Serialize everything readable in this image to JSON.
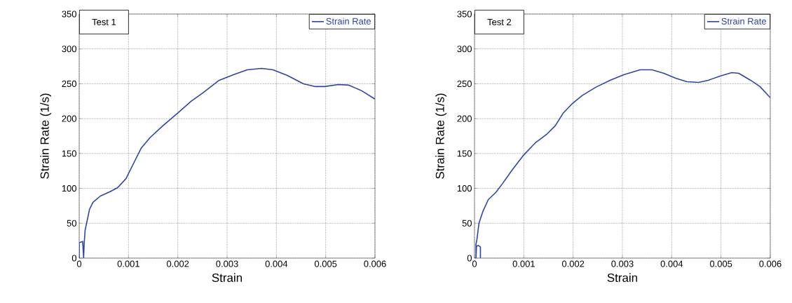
{
  "chart_data": [
    {
      "type": "line",
      "title": "Test 1",
      "xlabel": "Strain",
      "ylabel": "Strain Rate (1/s)",
      "xlim": [
        0,
        0.006
      ],
      "ylim": [
        0,
        350
      ],
      "xticks": [
        0,
        0.001,
        0.002,
        0.003,
        0.004,
        0.005,
        0.006
      ],
      "yticks": [
        0,
        50,
        100,
        150,
        200,
        250,
        300,
        350
      ],
      "grid": true,
      "legend": "top right",
      "line_style": "solid",
      "marker": "none",
      "series": [
        {
          "name": "Strain Rate",
          "color": "#2e45a6",
          "x": [
            0,
            0,
            7e-05,
            9e-05,
            0.0001,
            0.00012,
            0.00021,
            0.00028,
            0.00043,
            0.00062,
            0.00078,
            0.00095,
            0.00109,
            0.00126,
            0.00144,
            0.0017,
            0.002,
            0.00227,
            0.00251,
            0.00284,
            0.00313,
            0.00341,
            0.0037,
            0.00393,
            0.00422,
            0.00455,
            0.00479,
            0.00498,
            0.00526,
            0.00547,
            0.00573,
            0.006
          ],
          "values": [
            0,
            22,
            24,
            0,
            20,
            40,
            70,
            80,
            89,
            95,
            101,
            114,
            134,
            158,
            173,
            190,
            208,
            225,
            237,
            255,
            263,
            270,
            272,
            270,
            262,
            250,
            246,
            246,
            249,
            248,
            240,
            228
          ]
        }
      ]
    },
    {
      "type": "line",
      "title": "Test 2",
      "xlabel": "Strain",
      "ylabel": "Strain Rate (1/s)",
      "xlim": [
        0,
        0.006
      ],
      "ylim": [
        0,
        350
      ],
      "xticks": [
        0,
        0.001,
        0.002,
        0.003,
        0.004,
        0.005,
        0.006
      ],
      "yticks": [
        0,
        50,
        100,
        150,
        200,
        250,
        300,
        350
      ],
      "grid": true,
      "legend": "top right",
      "line_style": "solid",
      "marker": "none",
      "series": [
        {
          "name": "Strain Rate",
          "color": "#2e45a6",
          "x": [
            0.00012,
            0.00012,
            8e-05,
            4e-05,
            3e-05,
            3e-05,
            5e-05,
            9e-05,
            0.00017,
            0.00028,
            0.00043,
            0.00057,
            0.00076,
            0.001,
            0.00123,
            0.00147,
            0.00164,
            0.0018,
            0.00199,
            0.00218,
            0.00246,
            0.00275,
            0.00303,
            0.00336,
            0.0036,
            0.00384,
            0.00408,
            0.00431,
            0.00455,
            0.00474,
            0.00498,
            0.00522,
            0.00536,
            0.0056,
            0.00579,
            0.006
          ],
          "values": [
            0,
            16,
            18,
            17,
            0,
            20,
            27,
            50,
            67,
            84,
            94,
            107,
            126,
            148,
            165,
            178,
            190,
            208,
            222,
            233,
            245,
            255,
            263,
            270,
            270,
            265,
            258,
            253,
            252,
            255,
            261,
            266,
            265,
            255,
            246,
            230
          ]
        }
      ]
    }
  ]
}
